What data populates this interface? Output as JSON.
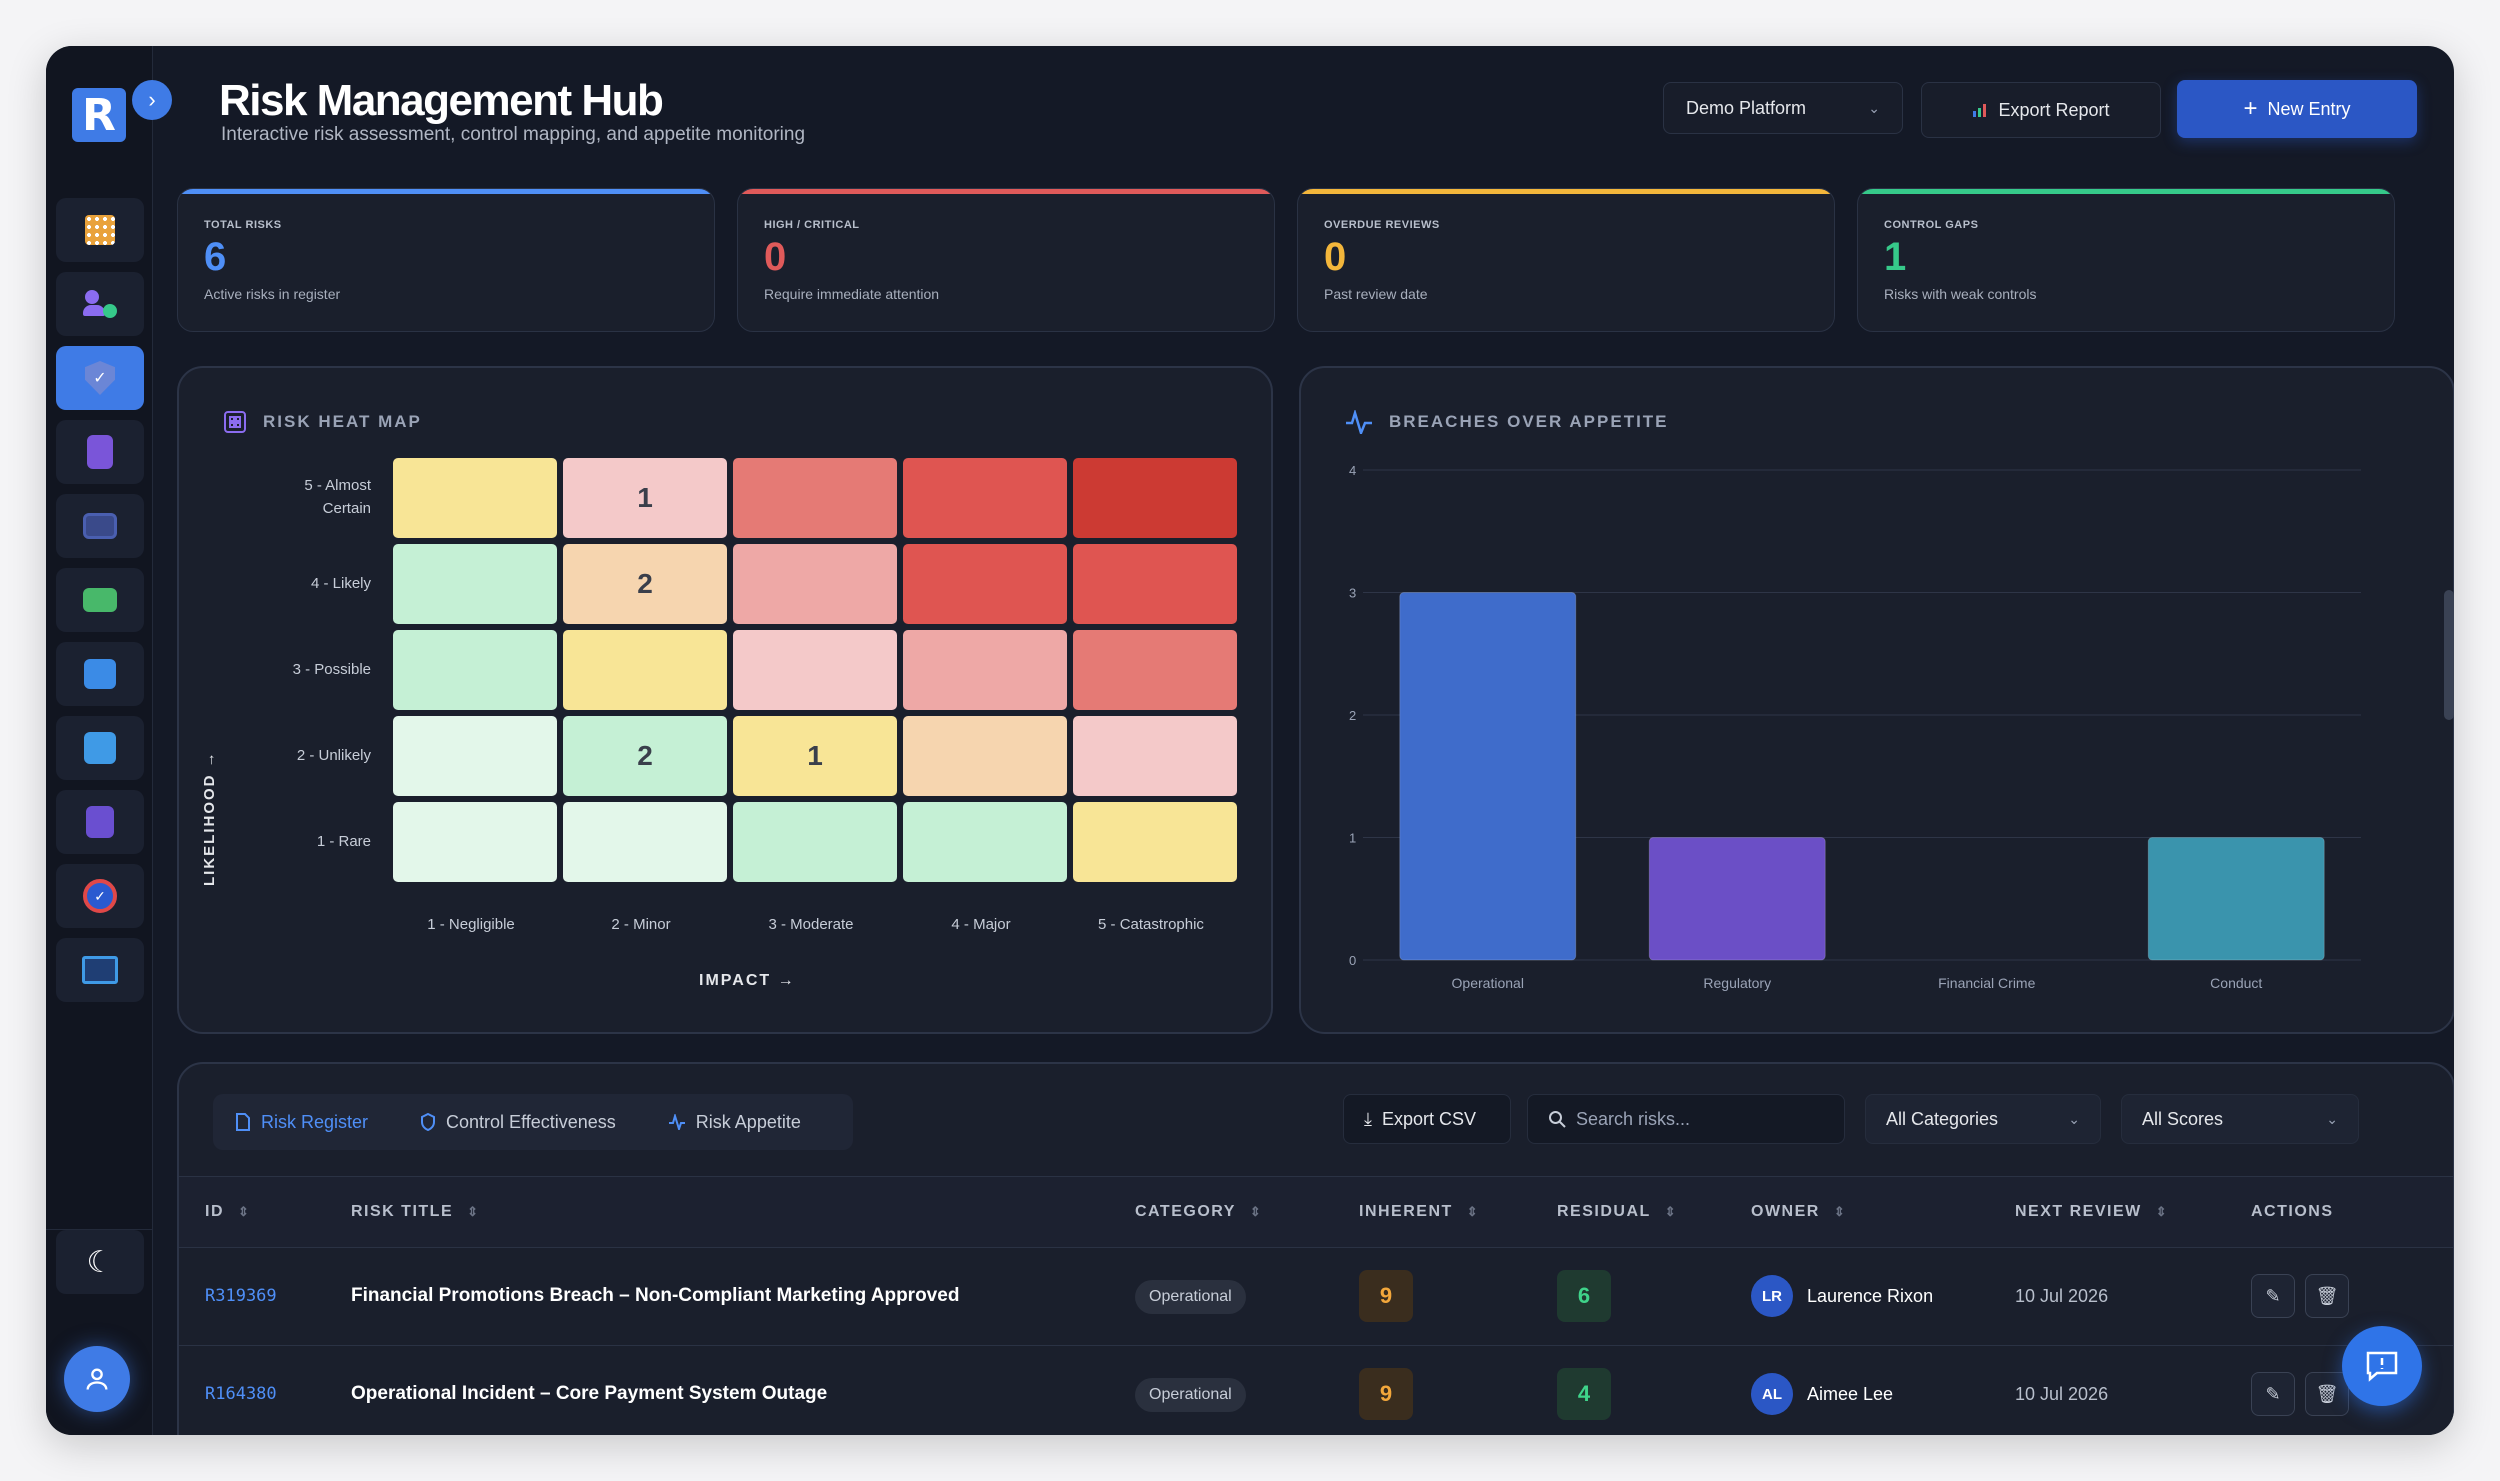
{
  "header": {
    "title": "Risk Management Hub",
    "subtitle": "Interactive risk assessment, control mapping, and appetite monitoring",
    "platform": "Demo Platform",
    "export_label": "Export Report",
    "new_label": "New Entry"
  },
  "logo": {
    "letter": "R"
  },
  "kpis": [
    {
      "label": "TOTAL RISKS",
      "value": "6",
      "desc": "Active risks in register",
      "color": "#4f8ff7"
    },
    {
      "label": "HIGH / CRITICAL",
      "value": "0",
      "desc": "Require immediate attention",
      "color": "#e05a5a"
    },
    {
      "label": "OVERDUE REVIEWS",
      "value": "0",
      "desc": "Past review date",
      "color": "#f3b63b"
    },
    {
      "label": "CONTROL GAPS",
      "value": "1",
      "desc": "Risks with weak controls",
      "color": "#36c98a"
    }
  ],
  "heatmap": {
    "title": "RISK HEAT MAP",
    "y_axis": "LIKELIHOOD →",
    "x_axis": "IMPACT →",
    "likelihood": [
      "5 - Almost Certain",
      "4 - Likely",
      "3 - Possible",
      "2 - Unlikely",
      "1 - Rare"
    ],
    "impact": [
      "1 - Negligible",
      "2 - Minor",
      "3 - Moderate",
      "4 - Major",
      "5 - Catastrophic"
    ],
    "counts": [
      [
        "",
        "1",
        "",
        "",
        ""
      ],
      [
        "",
        "2",
        "",
        "",
        ""
      ],
      [
        "",
        "",
        "",
        "",
        ""
      ],
      [
        "",
        "2",
        "1",
        "",
        ""
      ],
      [
        "",
        "",
        "",
        "",
        ""
      ]
    ],
    "colors": [
      [
        "#f8e596",
        "#f4c9c9",
        "#e57a75",
        "#df5551",
        "#cc3a33"
      ],
      [
        "#c5f0d5",
        "#f6d5af",
        "#eea8a6",
        "#df5551",
        "#df5551"
      ],
      [
        "#c5f0d5",
        "#f8e596",
        "#f4c9c9",
        "#eea8a6",
        "#e57a75"
      ],
      [
        "#e3f7ea",
        "#c5f0d5",
        "#f8e596",
        "#f6d5af",
        "#f4c9c9"
      ],
      [
        "#e3f7ea",
        "#e3f7ea",
        "#c5f0d5",
        "#c5f0d5",
        "#f8e596"
      ]
    ]
  },
  "chart_data": {
    "type": "bar",
    "title": "BREACHES OVER APPETITE",
    "categories": [
      "Operational",
      "Regulatory",
      "Financial Crime",
      "Conduct"
    ],
    "values": [
      3,
      1,
      0,
      1
    ],
    "colors": [
      "#3f6ccb",
      "#6b4fc6",
      "#3f6ccb",
      "#3a94ad"
    ],
    "ylim": [
      0,
      4
    ],
    "yticks": [
      "0",
      "1",
      "2",
      "3",
      "4"
    ],
    "grid": true
  },
  "table": {
    "tabs": [
      "Risk Register",
      "Control Effectiveness",
      "Risk Appetite"
    ],
    "export_csv": "Export CSV",
    "search_placeholder": "Search risks...",
    "category_filter": "All Categories",
    "score_filter": "All Scores",
    "columns": [
      "ID",
      "RISK TITLE",
      "CATEGORY",
      "INHERENT",
      "RESIDUAL",
      "OWNER",
      "NEXT REVIEW",
      "ACTIONS"
    ],
    "rows": [
      {
        "id": "R319369",
        "title": "Financial Promotions Breach – Non-Compliant Marketing Approved",
        "category": "Operational",
        "inherent": "9",
        "residual": "6",
        "initials": "LR",
        "owner": "Laurence Rixon",
        "review": "10 Jul 2026"
      },
      {
        "id": "R164380",
        "title": "Operational Incident – Core Payment System Outage",
        "category": "Operational",
        "inherent": "9",
        "residual": "4",
        "initials": "AL",
        "owner": "Aimee Lee",
        "review": "10 Jul 2026"
      }
    ]
  }
}
